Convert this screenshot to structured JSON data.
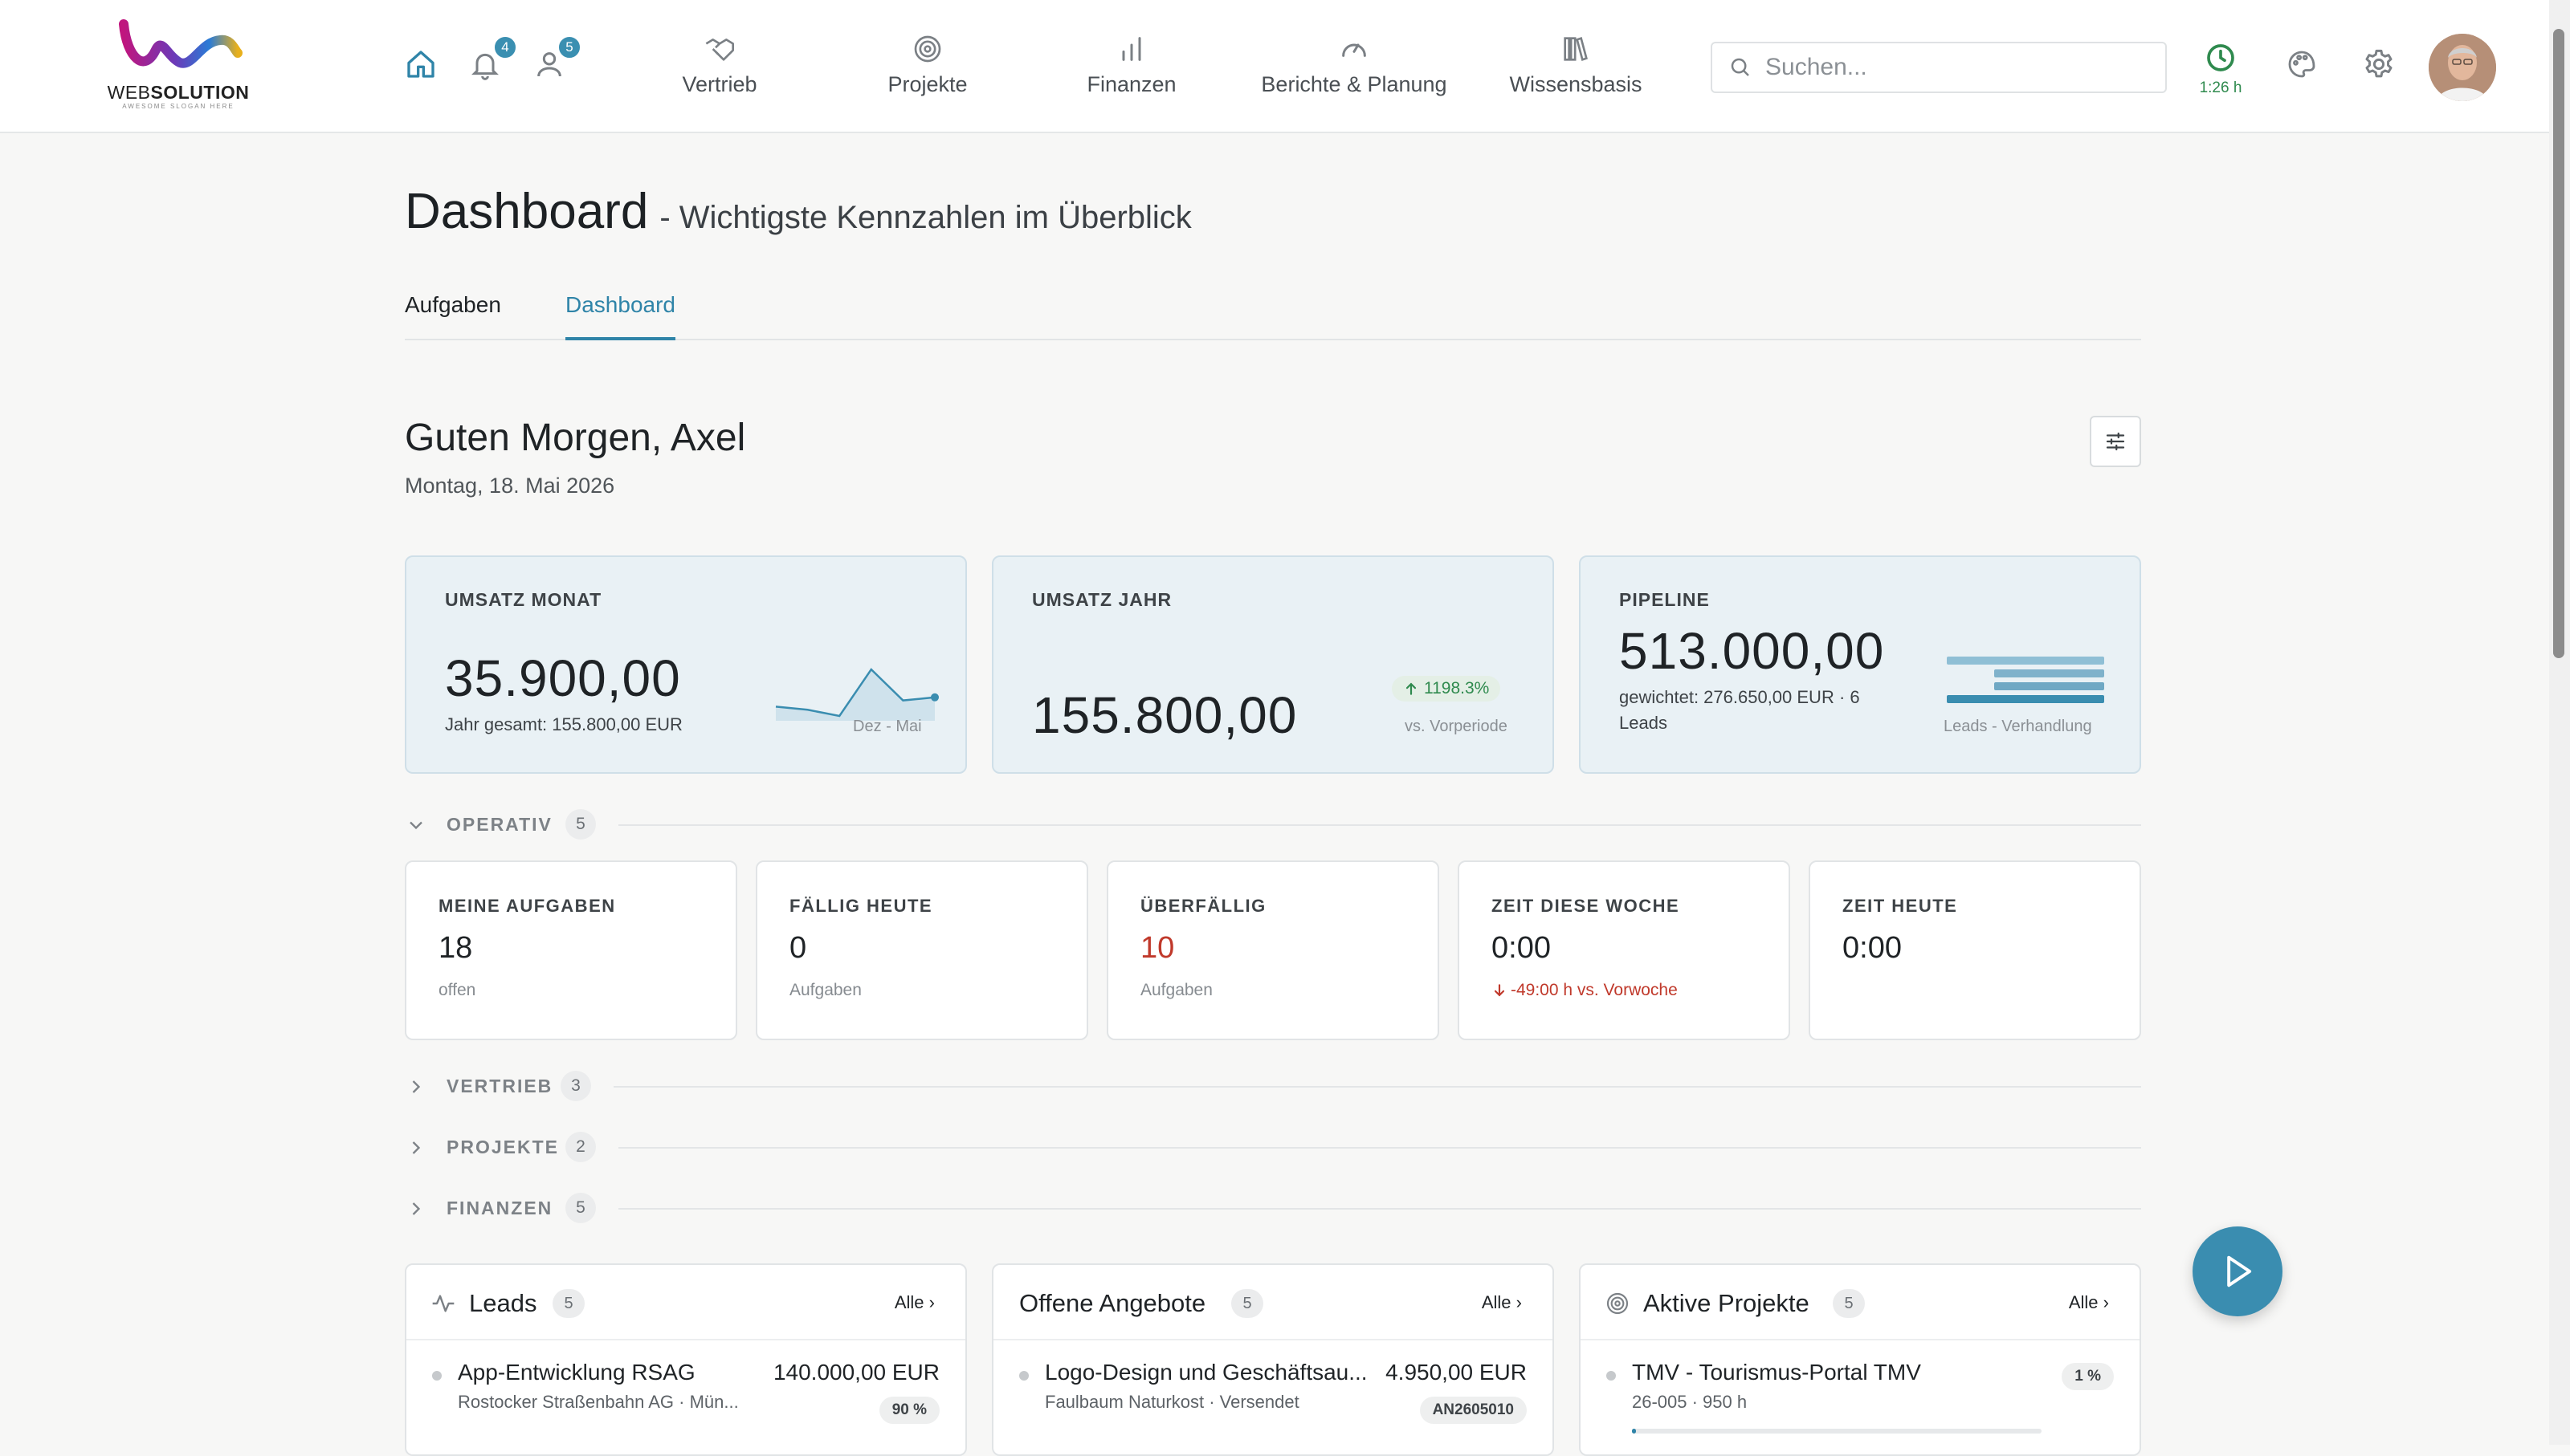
{
  "brand": {
    "logo_name": "websolution-logo",
    "wordmark_light": "WEB",
    "wordmark_bold": "SOLUTION",
    "slogan": "AWESOME SLOGAN HERE"
  },
  "header": {
    "notifications_count": "4",
    "users_count": "5",
    "nav": [
      {
        "label": "Vertrieb",
        "icon": "handshake-icon"
      },
      {
        "label": "Projekte",
        "icon": "target-icon"
      },
      {
        "label": "Finanzen",
        "icon": "bar-chart-icon"
      },
      {
        "label": "Berichte & Planung",
        "icon": "gauge-icon"
      },
      {
        "label": "Wissensbasis",
        "icon": "books-icon"
      }
    ],
    "search_placeholder": "Suchen...",
    "timer_label": "1:26 h"
  },
  "page": {
    "title": "Dashboard",
    "subtitle": "- Wichtigste Kennzahlen im Überblick",
    "tabs": [
      {
        "label": "Aufgaben",
        "active": false
      },
      {
        "label": "Dashboard",
        "active": true
      }
    ],
    "greeting": "Guten Morgen, Axel",
    "date": "Montag, 18. Mai 2026"
  },
  "kpis": {
    "umsatz_monat": {
      "label": "UMSATZ MONAT",
      "value": "35.900,00",
      "note": "Jahr gesamt: 155.800,00 EUR",
      "spark_caption": "Dez - Mai",
      "spark_values": [
        3,
        2,
        0,
        15,
        5,
        6
      ]
    },
    "umsatz_jahr": {
      "label": "UMSATZ JAHR",
      "value": "155.800,00",
      "trend": "1198.3%",
      "trend_note": "vs. Vorperiode"
    },
    "pipeline": {
      "label": "PIPELINE",
      "value": "513.000,00",
      "note_line1": "gewichtet: 276.650,00 EUR · 6",
      "note_line2": "Leads",
      "caption": "Leads - Verhandlung",
      "stage_levels": [
        1.0,
        0.7,
        0.7,
        1.0
      ]
    }
  },
  "sections": {
    "operativ": {
      "label": "OPERATIV",
      "count": "5"
    },
    "vertrieb": {
      "label": "VERTRIEB",
      "count": "3"
    },
    "projekte": {
      "label": "PROJEKTE",
      "count": "2"
    },
    "finanzen": {
      "label": "FINANZEN",
      "count": "5"
    }
  },
  "operativ_cards": [
    {
      "label": "MEINE AUFGABEN",
      "value": "18",
      "sub": "offen"
    },
    {
      "label": "FÄLLIG HEUTE",
      "value": "0",
      "sub": "Aufgaben"
    },
    {
      "label": "ÜBERFÄLLIG",
      "value": "10",
      "sub": "Aufgaben"
    },
    {
      "label": "ZEIT DIESE WOCHE",
      "value": "0:00",
      "sub": "-49:00 h vs. Vorwoche"
    },
    {
      "label": "ZEIT HEUTE",
      "value": "0:00"
    }
  ],
  "lists": {
    "leads": {
      "title": "Leads",
      "count": "5",
      "all_label": "Alle",
      "first": {
        "name": "App-Entwicklung RSAG",
        "meta": "Rostocker Straßenbahn AG · Mün...",
        "amount": "140.000,00 EUR",
        "pill": "90 %"
      }
    },
    "angebote": {
      "title": "Offene Angebote",
      "count": "5",
      "all_label": "Alle",
      "first": {
        "name": "Logo-Design und Geschäftsau...",
        "meta": "Faulbaum Naturkost · Versendet",
        "amount": "4.950,00 EUR",
        "pill": "AN2605010"
      }
    },
    "projekte": {
      "title": "Aktive Projekte",
      "count": "5",
      "all_label": "Alle",
      "first": {
        "name": "TMV - Tourismus-Portal TMV",
        "meta": "26-005 · 950 h",
        "pill": "1 %",
        "progress": 0.01
      }
    }
  },
  "colors": {
    "accent": "#2f84a8",
    "danger": "#c0392b",
    "success": "#2f8a4e",
    "kpi_bg": "#e9f1f5"
  }
}
